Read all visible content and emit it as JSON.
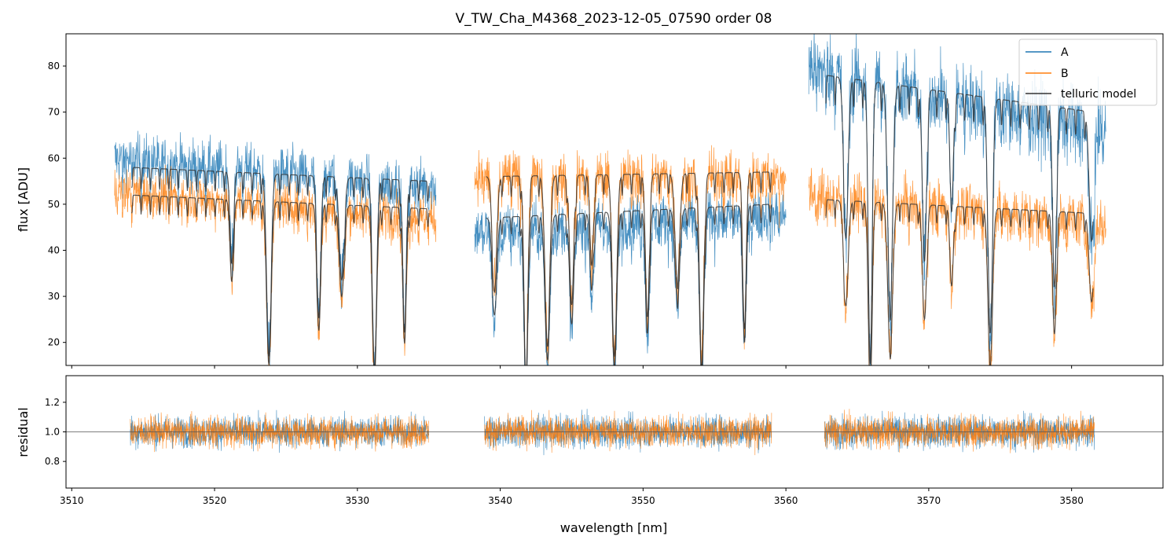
{
  "chart_data": {
    "type": "line",
    "title": "V_TW_Cha_M4368_2023-12-05_07590  order 08",
    "xlabel": "wavelength [nm]",
    "xlim": [
      3509.6,
      3586.4
    ],
    "x_ticks": [
      3510,
      3520,
      3530,
      3540,
      3550,
      3560,
      3570,
      3580
    ],
    "x_tick_labels": [
      "3510",
      "3520",
      "3530",
      "3540",
      "3550",
      "3560",
      "3570",
      "3580"
    ],
    "panels": [
      {
        "id": "flux",
        "ylabel": "flux [ADU]",
        "ylim": [
          15,
          87
        ],
        "y_ticks": [
          20,
          30,
          40,
          50,
          60,
          70,
          80
        ],
        "y_tick_labels": [
          "20",
          "30",
          "40",
          "50",
          "60",
          "70",
          "80"
        ],
        "legend": {
          "placement": "upper-right",
          "entries": [
            {
              "label": "A",
              "color": "#1f77b4"
            },
            {
              "label": "B",
              "color": "#ff7f0e"
            },
            {
              "label": "telluric model",
              "color": "#333333"
            }
          ]
        },
        "series": [
          {
            "name": "A",
            "color": "#1f77b4",
            "segments": [
              {
                "x_range": [
                  3513.0,
                  3535.5
                ],
                "level_start": 60,
                "level_end": 54,
                "noise": 7
              },
              {
                "x_range": [
                  3538.2,
                  3560.0
                ],
                "level_start": 44,
                "level_end": 48,
                "noise": 7
              },
              {
                "x_range": [
                  3561.6,
                  3582.4
                ],
                "level_start": 80,
                "level_end": 66,
                "noise": 10
              }
            ]
          },
          {
            "name": "B",
            "color": "#ff7f0e",
            "segments": [
              {
                "x_range": [
                  3513.0,
                  3535.5
                ],
                "level_start": 53,
                "level_end": 47,
                "noise": 6
              },
              {
                "x_range": [
                  3538.2,
                  3560.0
                ],
                "level_start": 56,
                "level_end": 56,
                "noise": 7
              },
              {
                "x_range": [
                  3561.6,
                  3582.4
                ],
                "level_start": 52,
                "level_end": 46,
                "noise": 7
              }
            ]
          },
          {
            "name": "telluric model A",
            "color": "#333333",
            "segments": [
              {
                "x_range": [
                  3514.2,
                  3535.0
                ],
                "level_start": 58,
                "level_end": 55
              },
              {
                "x_range": [
                  3539.0,
                  3559.0
                ],
                "level_start": 47,
                "level_end": 50
              },
              {
                "x_range": [
                  3562.8,
                  3581.5
                ],
                "level_start": 78,
                "level_end": 70
              }
            ]
          },
          {
            "name": "telluric model B",
            "color": "#333333",
            "segments": [
              {
                "x_range": [
                  3514.2,
                  3535.0
                ],
                "level_start": 52,
                "level_end": 49
              },
              {
                "x_range": [
                  3539.0,
                  3559.0
                ],
                "level_start": 56,
                "level_end": 57
              },
              {
                "x_range": [
                  3562.8,
                  3581.5
                ],
                "level_start": 51,
                "level_end": 48
              }
            ]
          }
        ],
        "telluric_lines_nm": [
          3521.2,
          3523.8,
          3527.3,
          3528.9,
          3531.2,
          3533.3,
          3539.6,
          3541.8,
          3543.3,
          3545.0,
          3546.4,
          3548.0,
          3550.3,
          3552.4,
          3554.1,
          3557.1,
          3564.2,
          3565.9,
          3567.3,
          3569.7,
          3571.6,
          3574.3,
          3578.8,
          3581.4
        ]
      },
      {
        "id": "residual",
        "ylabel": "residual",
        "ylim": [
          0.62,
          1.38
        ],
        "y_ticks": [
          0.8,
          1.0,
          1.2
        ],
        "y_tick_labels": [
          "0.8",
          "1.0",
          "1.2"
        ],
        "reference_line": 1.0,
        "series": [
          {
            "name": "A residual",
            "color": "#1f77b4",
            "center": 1.0,
            "noise": 0.12,
            "x_ranges": [
              [
                3514.1,
                3535.0
              ],
              [
                3538.9,
                3559.0
              ],
              [
                3562.7,
                3581.6
              ]
            ]
          },
          {
            "name": "B residual",
            "color": "#ff7f0e",
            "center": 1.0,
            "noise": 0.12,
            "x_ranges": [
              [
                3514.1,
                3535.0
              ],
              [
                3538.9,
                3559.0
              ],
              [
                3562.7,
                3581.6
              ]
            ]
          }
        ]
      }
    ]
  }
}
